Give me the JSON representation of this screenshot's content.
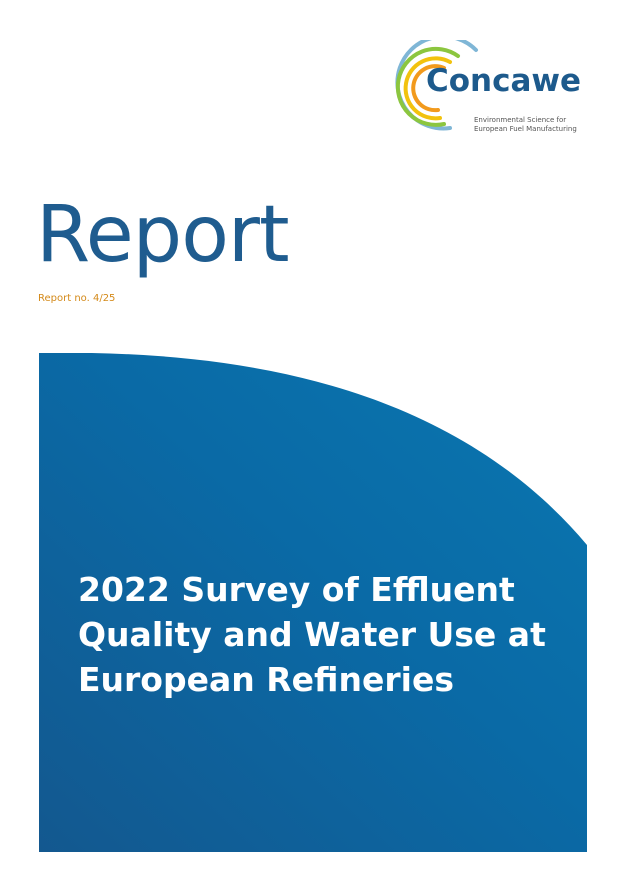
{
  "logo": {
    "name": "Concawe",
    "tagline_line1": "Environmental Science for",
    "tagline_line2": "European Fuel Manufacturing"
  },
  "report": {
    "label": "Report",
    "number": "Report no. 4/25"
  },
  "title": {
    "line1": "2022 Survey of Effluent",
    "line2": "Quality and Water Use at",
    "line3": "European Refineries"
  },
  "colors": {
    "brand_blue": "#1f5c8f",
    "banner_blue_light": "#0a77b0",
    "banner_blue_dark": "#13588f",
    "report_no_orange": "#d48a1a",
    "arc_light_blue": "#7fb6d6",
    "arc_green": "#8cc63f",
    "arc_yellow": "#f2c20e",
    "arc_orange": "#f29a1d"
  }
}
